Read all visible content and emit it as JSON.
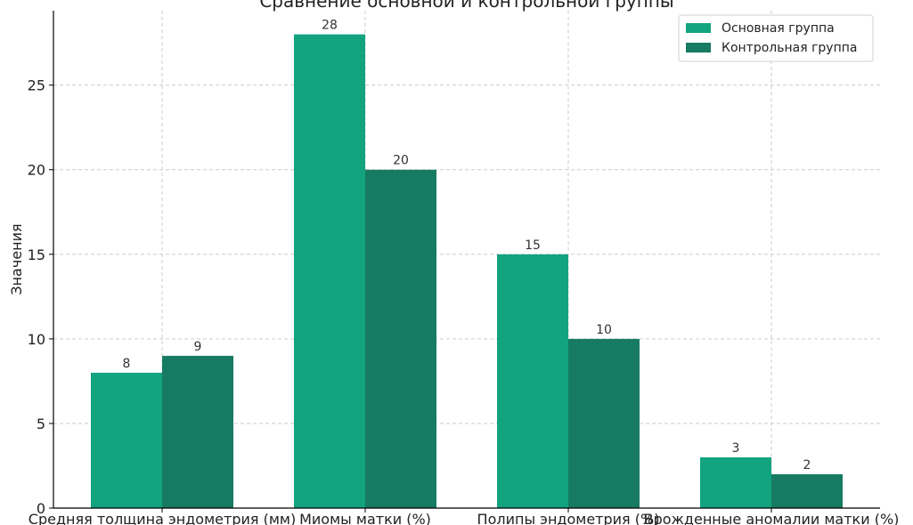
{
  "chart_data": {
    "type": "bar",
    "title": "Сравнение основной и контрольной группы",
    "xlabel": "",
    "ylabel": "Значения",
    "categories": [
      "Средняя толщина эндометрия (мм)",
      "Миомы матки (%)",
      "Полипы эндометрия (%)",
      "Врожденные аномалии матки (%)"
    ],
    "series": [
      {
        "name": "Основная группа",
        "values": [
          8,
          28,
          15,
          3
        ],
        "color": "#12a37f"
      },
      {
        "name": "Контрольная группа",
        "values": [
          9,
          20,
          10,
          2
        ],
        "color": "#167b62"
      }
    ],
    "ylim": [
      0,
      29.4
    ],
    "yticks": [
      0,
      5,
      10,
      15,
      20,
      25
    ],
    "grid": true,
    "legend_position": "top-right"
  }
}
